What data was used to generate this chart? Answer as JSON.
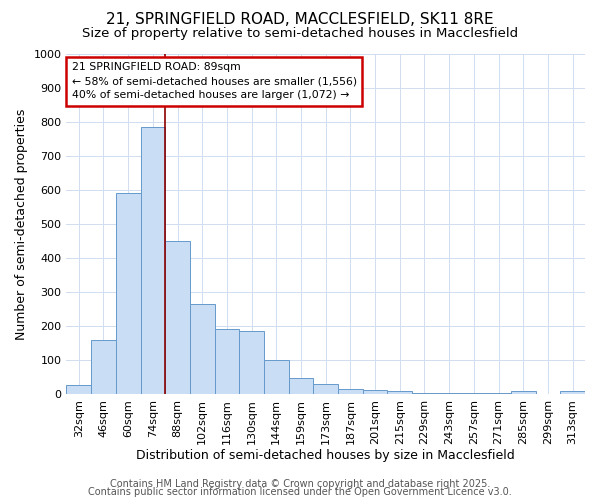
{
  "title": "21, SPRINGFIELD ROAD, MACCLESFIELD, SK11 8RE",
  "subtitle": "Size of property relative to semi-detached houses in Macclesfield",
  "xlabel": "Distribution of semi-detached houses by size in Macclesfield",
  "ylabel": "Number of semi-detached properties",
  "categories": [
    "32sqm",
    "46sqm",
    "60sqm",
    "74sqm",
    "88sqm",
    "102sqm",
    "116sqm",
    "130sqm",
    "144sqm",
    "159sqm",
    "173sqm",
    "187sqm",
    "201sqm",
    "215sqm",
    "229sqm",
    "243sqm",
    "257sqm",
    "271sqm",
    "285sqm",
    "299sqm",
    "313sqm"
  ],
  "values": [
    25,
    158,
    590,
    785,
    450,
    265,
    190,
    185,
    100,
    47,
    30,
    15,
    12,
    10,
    3,
    3,
    3,
    3,
    8,
    0,
    10
  ],
  "bar_color": "#c9ddf5",
  "bar_edge_color": "#6699cc",
  "vline_x": 3.5,
  "vline_color": "#8B0000",
  "ylim": [
    0,
    1000
  ],
  "yticks": [
    0,
    100,
    200,
    300,
    400,
    500,
    600,
    700,
    800,
    900,
    1000
  ],
  "annotation_title": "21 SPRINGFIELD ROAD: 89sqm",
  "annotation_line1": "← 58% of semi-detached houses are smaller (1,556)",
  "annotation_line2": "40% of semi-detached houses are larger (1,072) →",
  "annotation_box_facecolor": "#ffffff",
  "annotation_box_edgecolor": "#cc0000",
  "footer1": "Contains HM Land Registry data © Crown copyright and database right 2025.",
  "footer2": "Contains public sector information licensed under the Open Government Licence v3.0.",
  "background_color": "#ffffff",
  "grid_color": "#d0ddf0",
  "title_fontsize": 11,
  "subtitle_fontsize": 9.5,
  "axis_label_fontsize": 9,
  "tick_fontsize": 8,
  "footer_fontsize": 7
}
